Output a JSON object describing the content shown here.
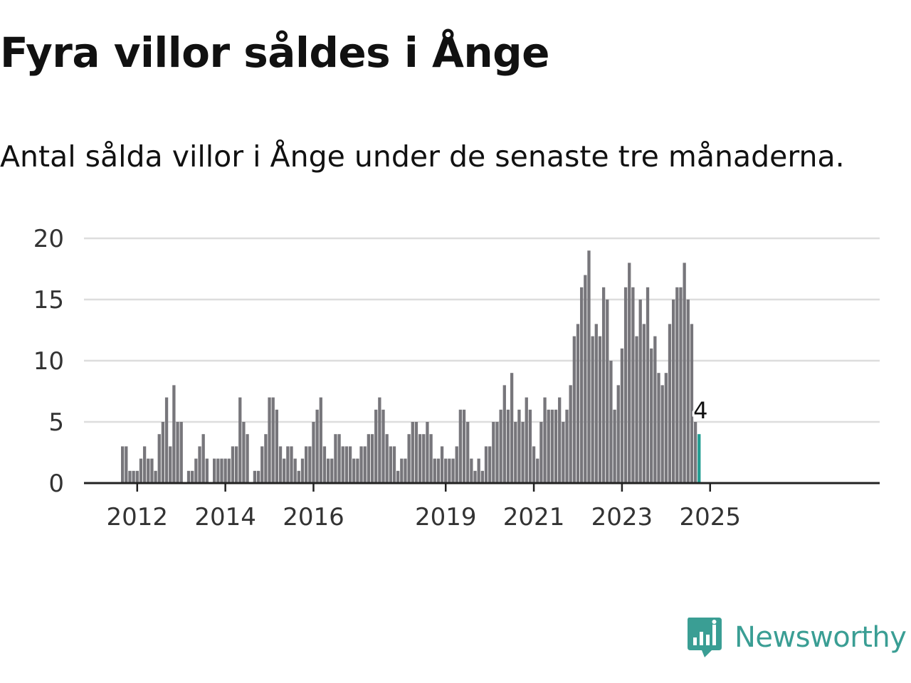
{
  "title": "Fyra villor såldes i Ånge",
  "subtitle": "Antal sålda villor i Ånge under de senaste tre månaderna.",
  "brand": {
    "name": "Newsworthy",
    "icon": "newsworthy-logo-icon"
  },
  "colors": {
    "bar": "#77767b",
    "highlight": "#219e92",
    "grid": "#dddddd",
    "axis": "#222222",
    "brand": "#3a9e94"
  },
  "chart_data": {
    "type": "bar",
    "x_start": "2011-09",
    "x_interval": "month",
    "values": [
      3,
      3,
      1,
      1,
      1,
      2,
      3,
      2,
      2,
      1,
      4,
      5,
      7,
      3,
      8,
      5,
      5,
      0,
      1,
      1,
      2,
      3,
      4,
      2,
      0,
      2,
      2,
      2,
      2,
      2,
      3,
      3,
      7,
      5,
      4,
      0,
      1,
      1,
      3,
      4,
      7,
      7,
      6,
      3,
      2,
      3,
      3,
      2,
      1,
      2,
      3,
      3,
      5,
      6,
      7,
      3,
      2,
      2,
      4,
      4,
      3,
      3,
      3,
      2,
      2,
      3,
      3,
      4,
      4,
      6,
      7,
      6,
      4,
      3,
      3,
      1,
      2,
      2,
      4,
      5,
      5,
      4,
      4,
      5,
      4,
      2,
      2,
      3,
      2,
      2,
      2,
      3,
      6,
      6,
      5,
      2,
      1,
      2,
      1,
      3,
      3,
      5,
      5,
      6,
      8,
      6,
      9,
      5,
      6,
      5,
      7,
      6,
      3,
      2,
      5,
      7,
      6,
      6,
      6,
      7,
      5,
      6,
      8,
      12,
      13,
      16,
      17,
      19,
      12,
      13,
      12,
      16,
      15,
      10,
      6,
      8,
      11,
      16,
      18,
      16,
      12,
      15,
      13,
      16,
      11,
      12,
      9,
      8,
      9,
      13,
      15,
      16,
      16,
      18,
      15,
      13,
      5,
      4
    ],
    "highlight_last": true,
    "highlight_label": "4",
    "x_ticks": [
      "2012",
      "2014",
      "2016",
      "2019",
      "2021",
      "2023",
      "2025"
    ],
    "y_ticks": [
      "0",
      "5",
      "10",
      "15",
      "20"
    ],
    "ylim": [
      0,
      20
    ],
    "grid": true,
    "legend": "none"
  }
}
